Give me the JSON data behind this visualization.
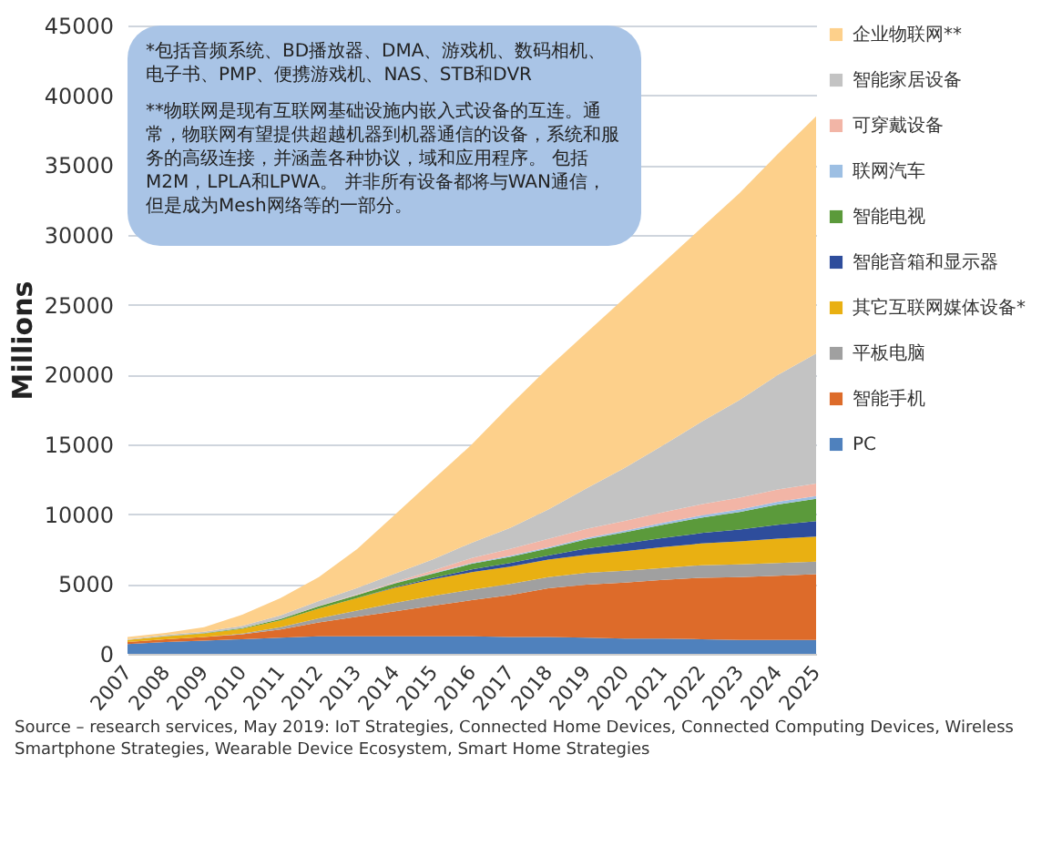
{
  "chart_data": {
    "type": "area",
    "stacked": true,
    "ylabel": "Millions",
    "categories": [
      "2007",
      "2008",
      "2009",
      "2010",
      "2011",
      "2012",
      "2013",
      "2014",
      "2015",
      "2016",
      "2017",
      "2018",
      "2019",
      "2020",
      "2021",
      "2022",
      "2023",
      "2024",
      "2025"
    ],
    "series": [
      {
        "name": "PC",
        "color": "#4f81bd",
        "values": [
          700,
          850,
          950,
          1050,
          1150,
          1250,
          1250,
          1250,
          1250,
          1250,
          1200,
          1200,
          1150,
          1100,
          1100,
          1050,
          1000,
          1000,
          1000
        ]
      },
      {
        "name": "智能手机",
        "color": "#dd6b2a",
        "values": [
          150,
          200,
          250,
          350,
          600,
          1000,
          1400,
          1800,
          2200,
          2600,
          3000,
          3500,
          3800,
          4000,
          4200,
          4400,
          4500,
          4600,
          4700
        ]
      },
      {
        "name": "平板电脑",
        "color": "#a0a0a0",
        "values": [
          0,
          0,
          0,
          50,
          150,
          300,
          450,
          600,
          700,
          750,
          800,
          800,
          850,
          850,
          850,
          900,
          900,
          900,
          900
        ]
      },
      {
        "name": "其它互联网媒体设备*",
        "color": "#e9b012",
        "values": [
          150,
          200,
          250,
          350,
          500,
          700,
          900,
          1100,
          1200,
          1250,
          1250,
          1250,
          1300,
          1400,
          1500,
          1550,
          1650,
          1750,
          1800
        ]
      },
      {
        "name": "智能音箱和显示器",
        "color": "#2e4d9c",
        "values": [
          0,
          0,
          0,
          0,
          0,
          0,
          0,
          50,
          100,
          200,
          250,
          300,
          450,
          550,
          650,
          750,
          850,
          1000,
          1100
        ]
      },
      {
        "name": "智能电视",
        "color": "#5b9a3b",
        "values": [
          0,
          20,
          30,
          50,
          100,
          150,
          200,
          250,
          300,
          400,
          450,
          500,
          650,
          800,
          950,
          1100,
          1250,
          1450,
          1600
        ]
      },
      {
        "name": "联网汽车",
        "color": "#9dbfe3",
        "values": [
          0,
          0,
          0,
          0,
          0,
          10,
          20,
          30,
          40,
          60,
          70,
          80,
          100,
          120,
          140,
          160,
          180,
          190,
          200
        ]
      },
      {
        "name": "可穿戴设备",
        "color": "#f2b5a6",
        "values": [
          0,
          0,
          0,
          0,
          0,
          20,
          50,
          80,
          200,
          350,
          500,
          600,
          650,
          700,
          750,
          800,
          850,
          880,
          900
        ]
      },
      {
        "name": "智能家居设备",
        "color": "#c3c3c3",
        "values": [
          50,
          80,
          100,
          150,
          250,
          350,
          450,
          600,
          800,
          1100,
          1500,
          2100,
          2900,
          3800,
          4800,
          5900,
          7000,
          8200,
          9300
        ]
      },
      {
        "name": "企业物联网**",
        "color": "#fdd08b",
        "values": [
          150,
          150,
          320,
          800,
          1250,
          1720,
          2780,
          4240,
          5710,
          7040,
          8780,
          10170,
          11150,
          12180,
          13060,
          13890,
          14820,
          15830,
          17000
        ]
      }
    ],
    "ylim": [
      0,
      45000
    ],
    "yticks": [
      0,
      5000,
      10000,
      15000,
      20000,
      25000,
      30000,
      35000,
      40000,
      45000
    ],
    "grid": "y",
    "legend": "right",
    "annotations": [
      "*包括音频系统、BD播放器、DMA、游戏机、数码相机、电子书、PMP、便携游戏机、NAS、STB和DVR",
      "**物联网是现有互联网基础设施内嵌入式设备的互连。通常，物联网有望提供超越机器到机器通信的设备，系统和服务的高级连接，并涵盖各种协议，域和应用程序。 包括M2M，LPLA和LPWA。 并非所有设备都将与WAN通信，但是成为Mesh网络等的一部分。",
      "Source – research services, May 2019: IoT Strategies, Connected Home Devices, Connected Computing Devices, Wireless Smartphone Strategies, Wearable Device Ecosystem,  Smart Home Strategies"
    ]
  }
}
